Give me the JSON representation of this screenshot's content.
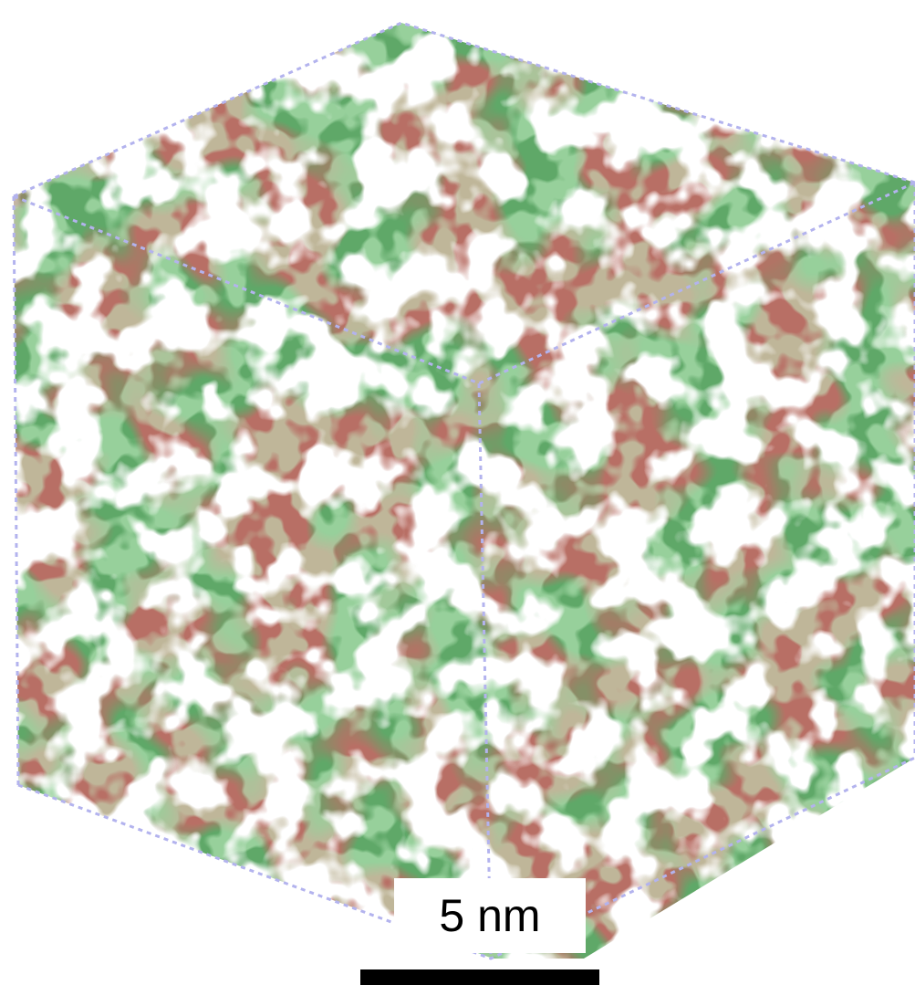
{
  "figure": {
    "scale_bar": {
      "label": "5 nm"
    },
    "colors": {
      "box_edges": "#b3b3ee",
      "surface_green": "#5fa868",
      "surface_light_green": "#8fe08f",
      "surface_dark_red": "#7a2a22",
      "surface_red": "#d63a2a",
      "surface_highlight": "#ecd9a0",
      "scale_bar": "#000000",
      "background": "#ffffff"
    }
  }
}
